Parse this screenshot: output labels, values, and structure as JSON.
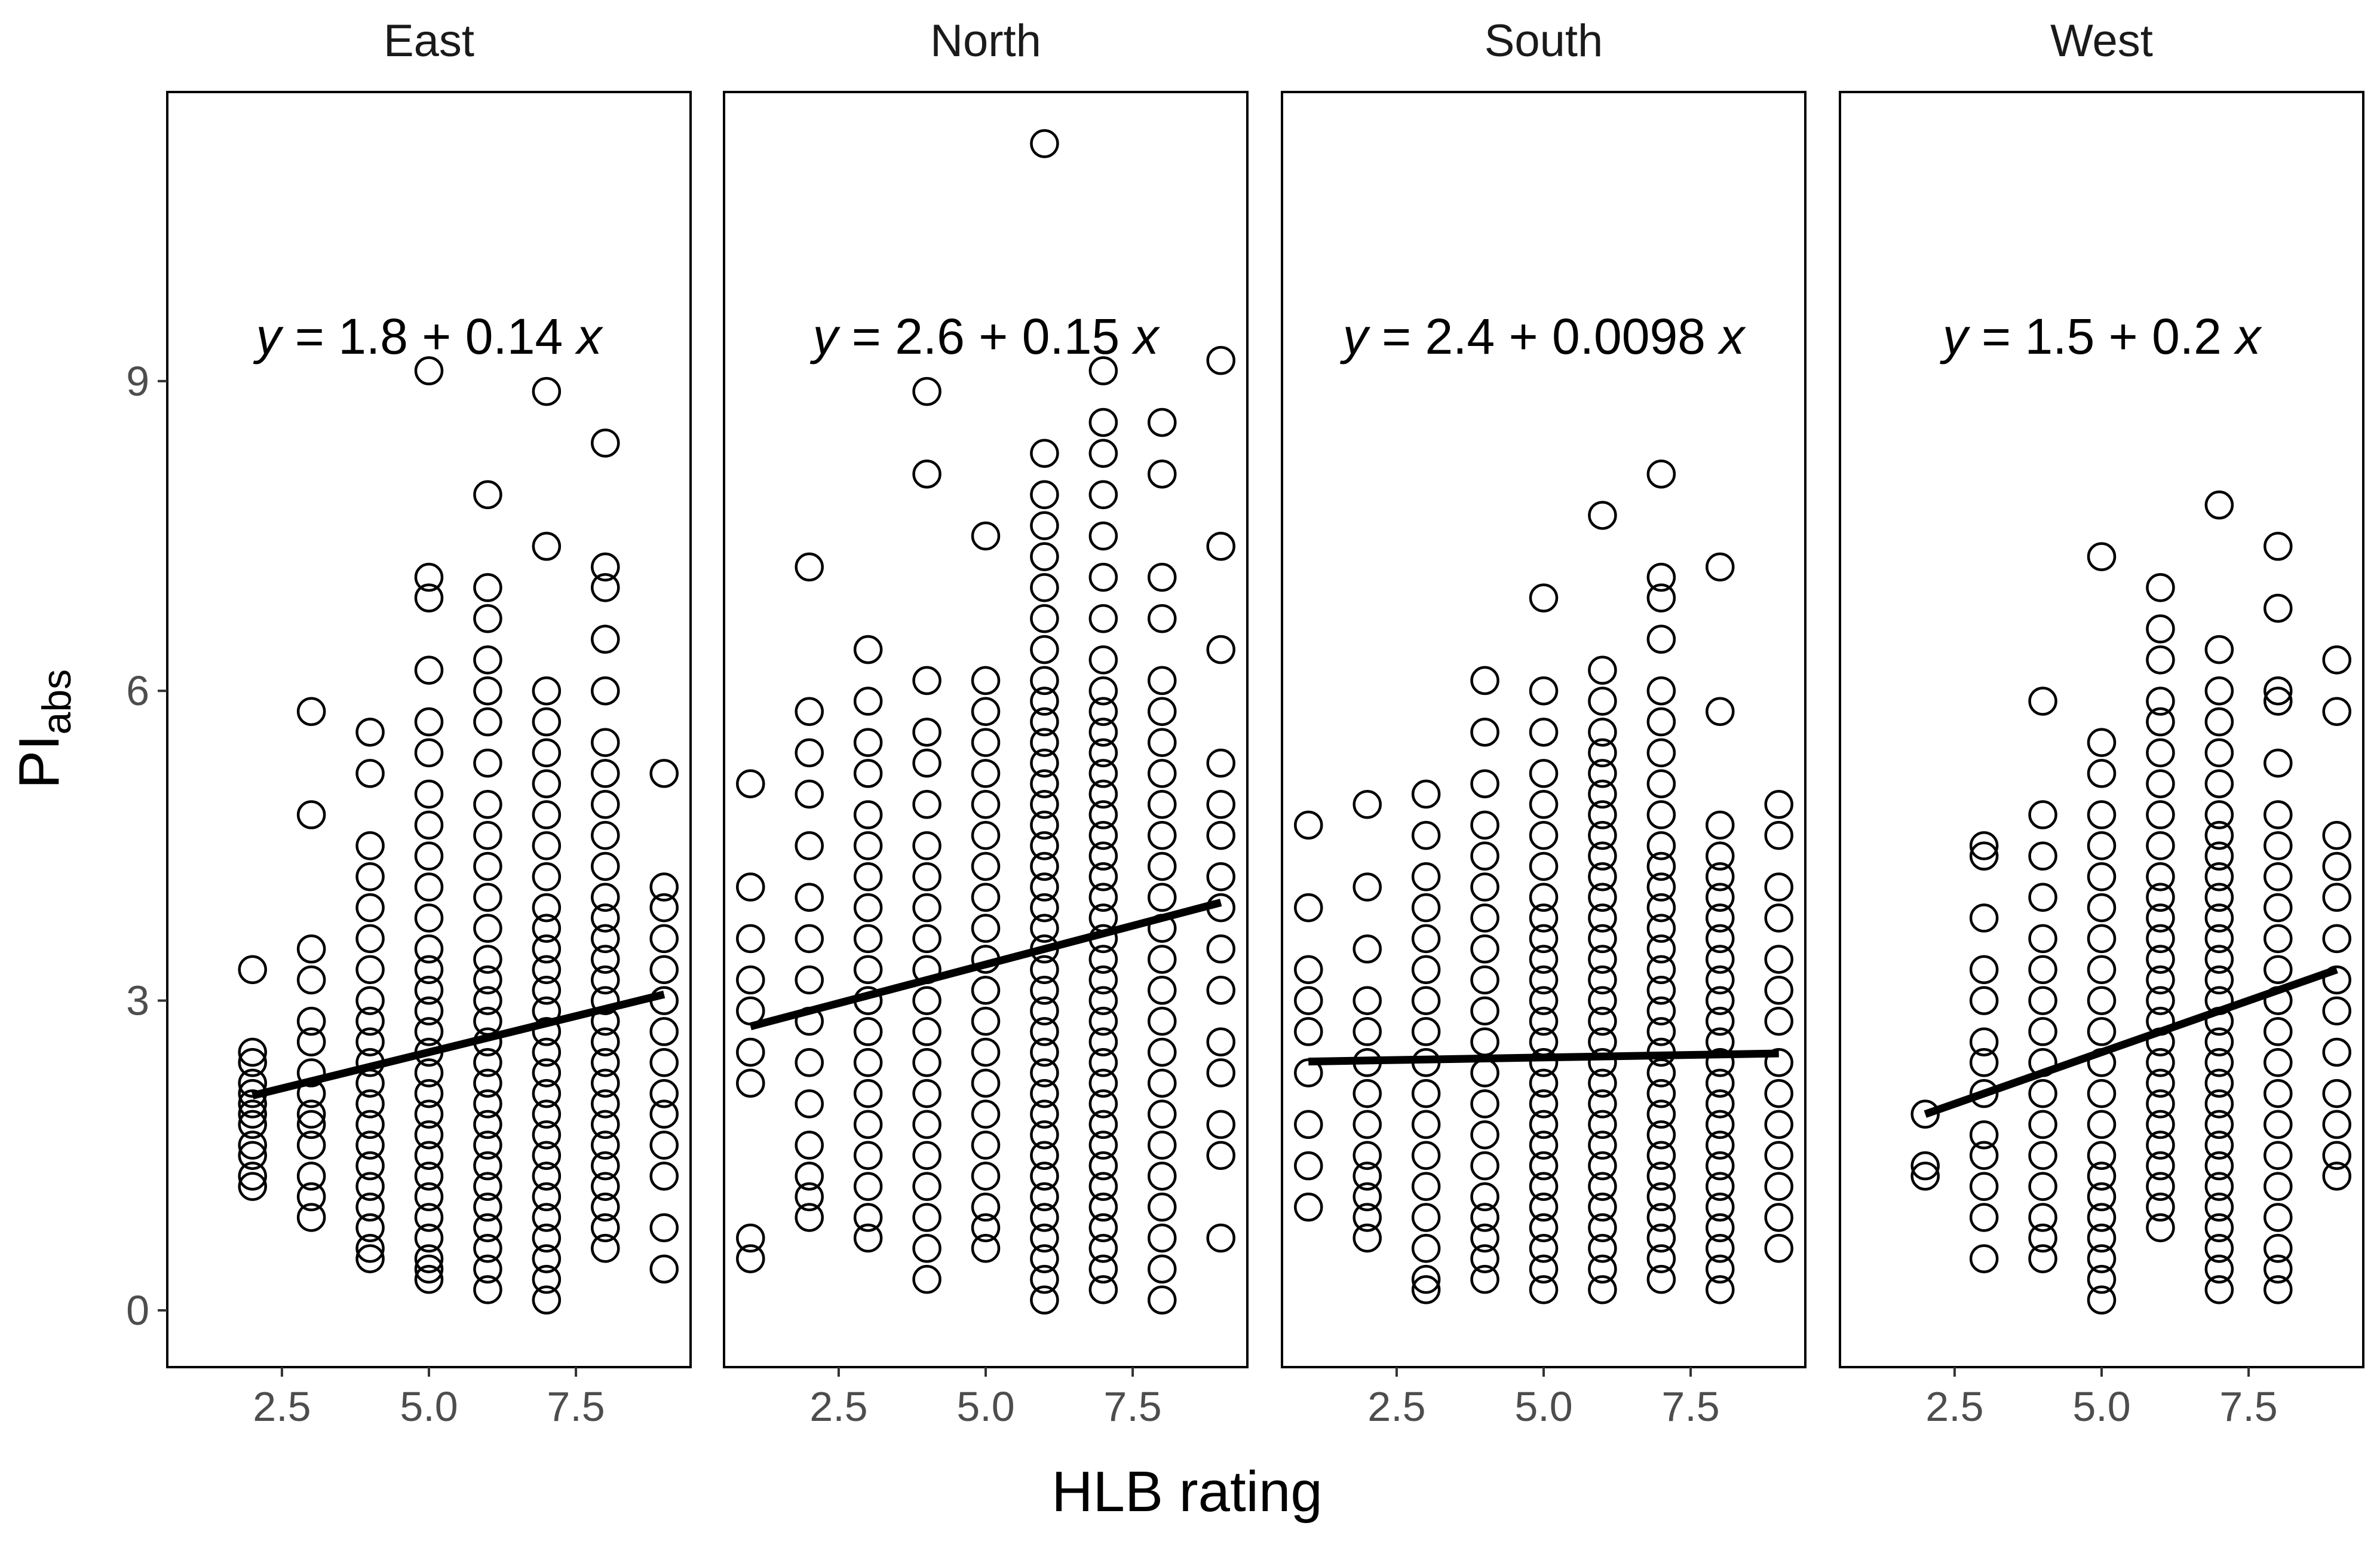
{
  "chart_data": {
    "type": "scatter",
    "facet_by": "region",
    "xlabel": "HLB rating",
    "ylabel_main": "PI",
    "ylabel_sub": "abs",
    "x_ticks": [
      "2.5",
      "5.0",
      "7.5"
    ],
    "x_tick_values": [
      2.5,
      5.0,
      7.5
    ],
    "y_ticks": [
      "0",
      "3",
      "6",
      "9"
    ],
    "y_tick_values": [
      0,
      3,
      6,
      9
    ],
    "xlim": [
      0.55,
      9.45
    ],
    "ylim": [
      -0.55,
      11.8
    ],
    "marker": "open-circle",
    "trend": "linear regression",
    "panels": [
      {
        "name": "East",
        "equation": {
          "y": "y",
          "intercept": "1.8",
          "slope": "0.14",
          "x": "x"
        },
        "intercept": 1.8,
        "slope": 0.14,
        "fit_x": [
          2,
          9
        ],
        "points": {
          "2": [
            1.2,
            1.3,
            1.5,
            1.6,
            1.8,
            1.9,
            2.0,
            2.1,
            2.2,
            2.4,
            2.5,
            3.3
          ],
          "3": [
            0.9,
            1.1,
            1.3,
            1.6,
            1.8,
            1.9,
            2.1,
            2.3,
            2.6,
            2.8,
            3.2,
            3.5,
            4.8,
            5.8
          ],
          "4": [
            0.5,
            0.6,
            0.8,
            1.0,
            1.2,
            1.4,
            1.6,
            1.8,
            2.0,
            2.2,
            2.4,
            2.6,
            2.8,
            3.0,
            3.3,
            3.6,
            3.9,
            4.2,
            4.5,
            5.2,
            5.6
          ],
          "5": [
            0.3,
            0.4,
            0.5,
            0.7,
            0.9,
            1.1,
            1.3,
            1.5,
            1.7,
            1.9,
            2.1,
            2.3,
            2.5,
            2.7,
            2.9,
            3.1,
            3.3,
            3.5,
            3.8,
            4.1,
            4.4,
            4.7,
            5.0,
            5.4,
            5.7,
            6.2,
            6.9,
            7.1,
            9.1
          ],
          "6": [
            0.2,
            0.4,
            0.6,
            0.8,
            1.0,
            1.2,
            1.4,
            1.6,
            1.8,
            2.0,
            2.2,
            2.4,
            2.6,
            2.8,
            3.0,
            3.2,
            3.4,
            3.7,
            4.0,
            4.3,
            4.6,
            4.9,
            5.3,
            5.7,
            6.0,
            6.3,
            6.7,
            7.0,
            7.9
          ],
          "7": [
            0.1,
            0.3,
            0.5,
            0.7,
            0.9,
            1.1,
            1.3,
            1.5,
            1.7,
            1.9,
            2.1,
            2.3,
            2.5,
            2.7,
            2.9,
            3.1,
            3.3,
            3.5,
            3.7,
            3.9,
            4.2,
            4.5,
            4.8,
            5.1,
            5.4,
            5.7,
            6.0,
            7.4,
            8.9
          ],
          "8": [
            0.6,
            0.8,
            1.0,
            1.2,
            1.4,
            1.6,
            1.8,
            2.0,
            2.2,
            2.4,
            2.6,
            2.8,
            3.0,
            3.2,
            3.4,
            3.6,
            3.8,
            4.0,
            4.3,
            4.6,
            4.9,
            5.2,
            5.5,
            6.0,
            6.5,
            7.0,
            7.2,
            8.4
          ],
          "9": [
            0.4,
            0.8,
            1.3,
            1.6,
            1.9,
            2.1,
            2.4,
            2.7,
            3.0,
            3.3,
            3.6,
            3.9,
            4.1,
            5.2
          ]
        }
      },
      {
        "name": "North",
        "equation": {
          "y": "y",
          "intercept": "2.6",
          "slope": "0.15",
          "x": "x"
        },
        "intercept": 2.6,
        "slope": 0.15,
        "fit_x": [
          1,
          9
        ],
        "points": {
          "1": [
            0.5,
            0.7,
            2.2,
            2.5,
            2.9,
            3.2,
            3.6,
            4.1,
            5.1
          ],
          "2": [
            0.9,
            1.1,
            1.3,
            1.6,
            2.0,
            2.4,
            2.8,
            3.2,
            3.6,
            4.0,
            4.5,
            5.0,
            5.4,
            5.8,
            7.2
          ],
          "3": [
            0.7,
            0.9,
            1.2,
            1.5,
            1.8,
            2.1,
            2.4,
            2.7,
            3.0,
            3.3,
            3.6,
            3.9,
            4.2,
            4.5,
            4.8,
            5.2,
            5.5,
            5.9,
            6.4
          ],
          "4": [
            0.3,
            0.6,
            0.9,
            1.2,
            1.5,
            1.8,
            2.1,
            2.4,
            2.7,
            3.0,
            3.3,
            3.6,
            3.9,
            4.2,
            4.5,
            4.9,
            5.3,
            5.6,
            6.1,
            8.1,
            8.9
          ],
          "5": [
            0.6,
            0.8,
            1.0,
            1.3,
            1.6,
            1.9,
            2.2,
            2.5,
            2.8,
            3.1,
            3.4,
            3.7,
            4.0,
            4.3,
            4.6,
            4.9,
            5.2,
            5.5,
            5.8,
            6.1,
            7.5
          ],
          "6": [
            0.1,
            0.3,
            0.5,
            0.7,
            0.9,
            1.1,
            1.3,
            1.5,
            1.7,
            1.9,
            2.1,
            2.3,
            2.5,
            2.7,
            2.9,
            3.1,
            3.3,
            3.5,
            3.7,
            3.9,
            4.1,
            4.3,
            4.5,
            4.7,
            4.9,
            5.1,
            5.3,
            5.5,
            5.7,
            5.9,
            6.1,
            6.4,
            6.7,
            7.0,
            7.3,
            7.6,
            7.9,
            8.3,
            11.3
          ],
          "7": [
            0.2,
            0.4,
            0.6,
            0.8,
            1.0,
            1.2,
            1.4,
            1.6,
            1.8,
            2.0,
            2.2,
            2.4,
            2.6,
            2.8,
            3.0,
            3.2,
            3.4,
            3.6,
            3.8,
            4.0,
            4.2,
            4.4,
            4.6,
            4.8,
            5.0,
            5.2,
            5.4,
            5.6,
            5.8,
            6.0,
            6.3,
            6.7,
            7.1,
            7.5,
            7.9,
            8.3,
            8.6,
            9.1
          ],
          "8": [
            0.1,
            0.4,
            0.7,
            1.0,
            1.3,
            1.6,
            1.9,
            2.2,
            2.5,
            2.8,
            3.1,
            3.4,
            3.7,
            4.0,
            4.3,
            4.6,
            4.9,
            5.2,
            5.5,
            5.8,
            6.1,
            6.7,
            7.1,
            8.1,
            8.6
          ],
          "9": [
            0.7,
            1.5,
            1.8,
            2.3,
            2.6,
            3.1,
            3.5,
            3.9,
            4.2,
            4.6,
            4.9,
            5.3,
            6.4,
            7.4,
            9.2
          ]
        }
      },
      {
        "name": "South",
        "equation": {
          "y": "y",
          "intercept": "2.4",
          "slope": "0.0098",
          "x": "x"
        },
        "intercept": 2.4,
        "slope": 0.0098,
        "fit_x": [
          1,
          9
        ],
        "points": {
          "1": [
            1.0,
            1.4,
            1.8,
            2.3,
            2.7,
            3.0,
            3.3,
            3.9,
            4.7
          ],
          "2": [
            0.7,
            0.9,
            1.1,
            1.3,
            1.5,
            1.8,
            2.1,
            2.4,
            2.7,
            3.0,
            3.5,
            4.1,
            4.9
          ],
          "3": [
            0.2,
            0.3,
            0.6,
            0.9,
            1.2,
            1.5,
            1.8,
            2.1,
            2.4,
            2.7,
            3.0,
            3.3,
            3.6,
            3.9,
            4.2,
            4.6,
            5.0
          ],
          "4": [
            0.3,
            0.5,
            0.7,
            0.9,
            1.1,
            1.4,
            1.7,
            2.0,
            2.3,
            2.6,
            2.9,
            3.2,
            3.5,
            3.8,
            4.1,
            4.4,
            4.7,
            5.1,
            5.6,
            6.1
          ],
          "5": [
            0.2,
            0.4,
            0.6,
            0.8,
            1.0,
            1.2,
            1.4,
            1.6,
            1.8,
            2.0,
            2.2,
            2.4,
            2.6,
            2.8,
            3.0,
            3.2,
            3.4,
            3.6,
            3.8,
            4.0,
            4.3,
            4.6,
            4.9,
            5.2,
            5.6,
            6.0,
            6.9
          ],
          "6": [
            0.2,
            0.4,
            0.6,
            0.8,
            1.0,
            1.2,
            1.4,
            1.6,
            1.8,
            2.0,
            2.2,
            2.4,
            2.6,
            2.8,
            3.0,
            3.2,
            3.4,
            3.6,
            3.8,
            4.0,
            4.2,
            4.4,
            4.6,
            4.8,
            5.0,
            5.2,
            5.4,
            5.6,
            5.9,
            6.2,
            7.7
          ],
          "7": [
            0.3,
            0.5,
            0.7,
            0.9,
            1.1,
            1.3,
            1.5,
            1.7,
            1.9,
            2.1,
            2.3,
            2.5,
            2.7,
            2.9,
            3.1,
            3.3,
            3.5,
            3.7,
            3.9,
            4.1,
            4.3,
            4.5,
            4.8,
            5.1,
            5.4,
            5.7,
            6.0,
            6.5,
            6.9,
            7.1,
            8.1
          ],
          "8": [
            0.2,
            0.4,
            0.6,
            0.8,
            1.0,
            1.2,
            1.4,
            1.6,
            1.8,
            2.0,
            2.2,
            2.4,
            2.6,
            2.8,
            3.0,
            3.2,
            3.4,
            3.6,
            3.8,
            4.0,
            4.2,
            4.4,
            4.7,
            5.8,
            7.2
          ],
          "9": [
            0.6,
            0.9,
            1.2,
            1.5,
            1.8,
            2.1,
            2.4,
            2.8,
            3.1,
            3.4,
            3.8,
            4.1,
            4.6,
            4.9
          ]
        }
      },
      {
        "name": "West",
        "equation": {
          "y": "y",
          "intercept": "1.5",
          "slope": "0.2",
          "x": "x"
        },
        "intercept": 1.5,
        "slope": 0.2,
        "fit_x": [
          2,
          9
        ],
        "points": {
          "2": [
            1.3,
            1.4,
            1.9
          ],
          "3": [
            0.5,
            0.9,
            1.2,
            1.5,
            1.7,
            2.1,
            2.4,
            2.6,
            3.0,
            3.3,
            3.8,
            4.4,
            4.5
          ],
          "4": [
            0.5,
            0.7,
            0.9,
            1.2,
            1.5,
            1.8,
            2.1,
            2.4,
            2.7,
            3.0,
            3.3,
            3.6,
            4.0,
            4.4,
            4.8,
            5.9
          ],
          "5": [
            0.1,
            0.3,
            0.5,
            0.7,
            0.9,
            1.1,
            1.3,
            1.5,
            1.8,
            2.1,
            2.4,
            2.7,
            3.0,
            3.3,
            3.6,
            3.9,
            4.2,
            4.5,
            4.8,
            5.2,
            5.5,
            7.3
          ],
          "6": [
            0.8,
            1.0,
            1.2,
            1.4,
            1.6,
            1.8,
            2.0,
            2.2,
            2.4,
            2.6,
            2.8,
            3.0,
            3.2,
            3.4,
            3.6,
            3.8,
            4.0,
            4.2,
            4.5,
            4.8,
            5.1,
            5.4,
            5.7,
            5.9,
            6.3,
            6.6,
            7.0
          ],
          "7": [
            0.2,
            0.4,
            0.6,
            0.8,
            1.0,
            1.2,
            1.4,
            1.6,
            1.8,
            2.0,
            2.2,
            2.4,
            2.6,
            2.8,
            3.0,
            3.2,
            3.4,
            3.6,
            3.8,
            4.0,
            4.2,
            4.4,
            4.6,
            4.8,
            5.1,
            5.4,
            5.7,
            6.0,
            6.4,
            7.8
          ],
          "8": [
            0.2,
            0.4,
            0.6,
            0.9,
            1.2,
            1.5,
            1.8,
            2.1,
            2.4,
            2.7,
            3.0,
            3.3,
            3.6,
            3.9,
            4.2,
            4.5,
            4.8,
            5.3,
            5.9,
            6.0,
            6.8,
            7.4
          ],
          "9": [
            1.3,
            1.5,
            1.8,
            2.1,
            2.5,
            2.9,
            3.2,
            3.6,
            4.0,
            4.3,
            4.6,
            5.8,
            6.3
          ]
        }
      }
    ]
  }
}
